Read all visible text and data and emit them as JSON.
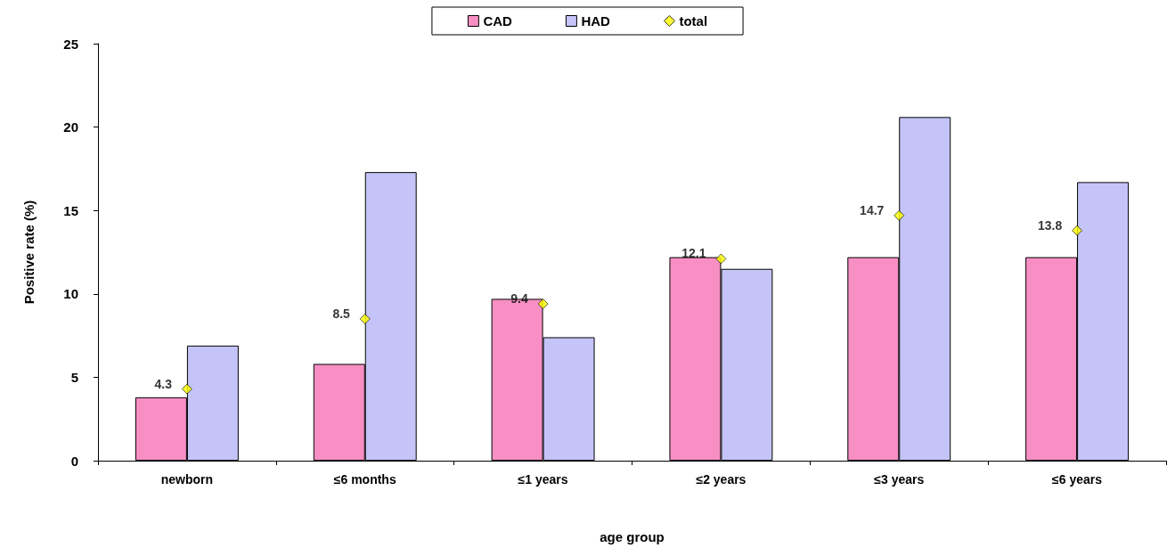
{
  "chart_data": {
    "type": "bar",
    "xlabel": "age group",
    "ylabel": "Positive rate (%)",
    "categories": [
      "newborn",
      "≤6 months",
      "≤1 years",
      "≤2 years",
      "≤3 years",
      "≤6 years"
    ],
    "series": [
      {
        "name": "CAD",
        "color": "#f78fc4",
        "values": [
          3.8,
          5.8,
          9.7,
          12.2,
          12.2,
          12.2
        ]
      },
      {
        "name": "HAD",
        "color": "#c4c4f8",
        "values": [
          6.9,
          17.3,
          7.4,
          11.5,
          20.6,
          16.7
        ]
      },
      {
        "name": "total",
        "type": "scatter",
        "color": "#ffff00",
        "marker": "diamond",
        "x": [
          "newborn",
          "≤6 months",
          "≤1 years",
          "≤2 years",
          "≤3 years",
          "≤6 years"
        ],
        "values": [
          4.3,
          8.5,
          9.4,
          12.1,
          14.7,
          13.8
        ],
        "value_labels": [
          "4.3",
          "8.5",
          "9.4",
          "12.1",
          "14.7",
          "13.8"
        ]
      }
    ],
    "ylim": [
      0,
      25
    ],
    "yticks": [
      0,
      5,
      10,
      15,
      20,
      25
    ],
    "grid": false,
    "legend": "top"
  }
}
